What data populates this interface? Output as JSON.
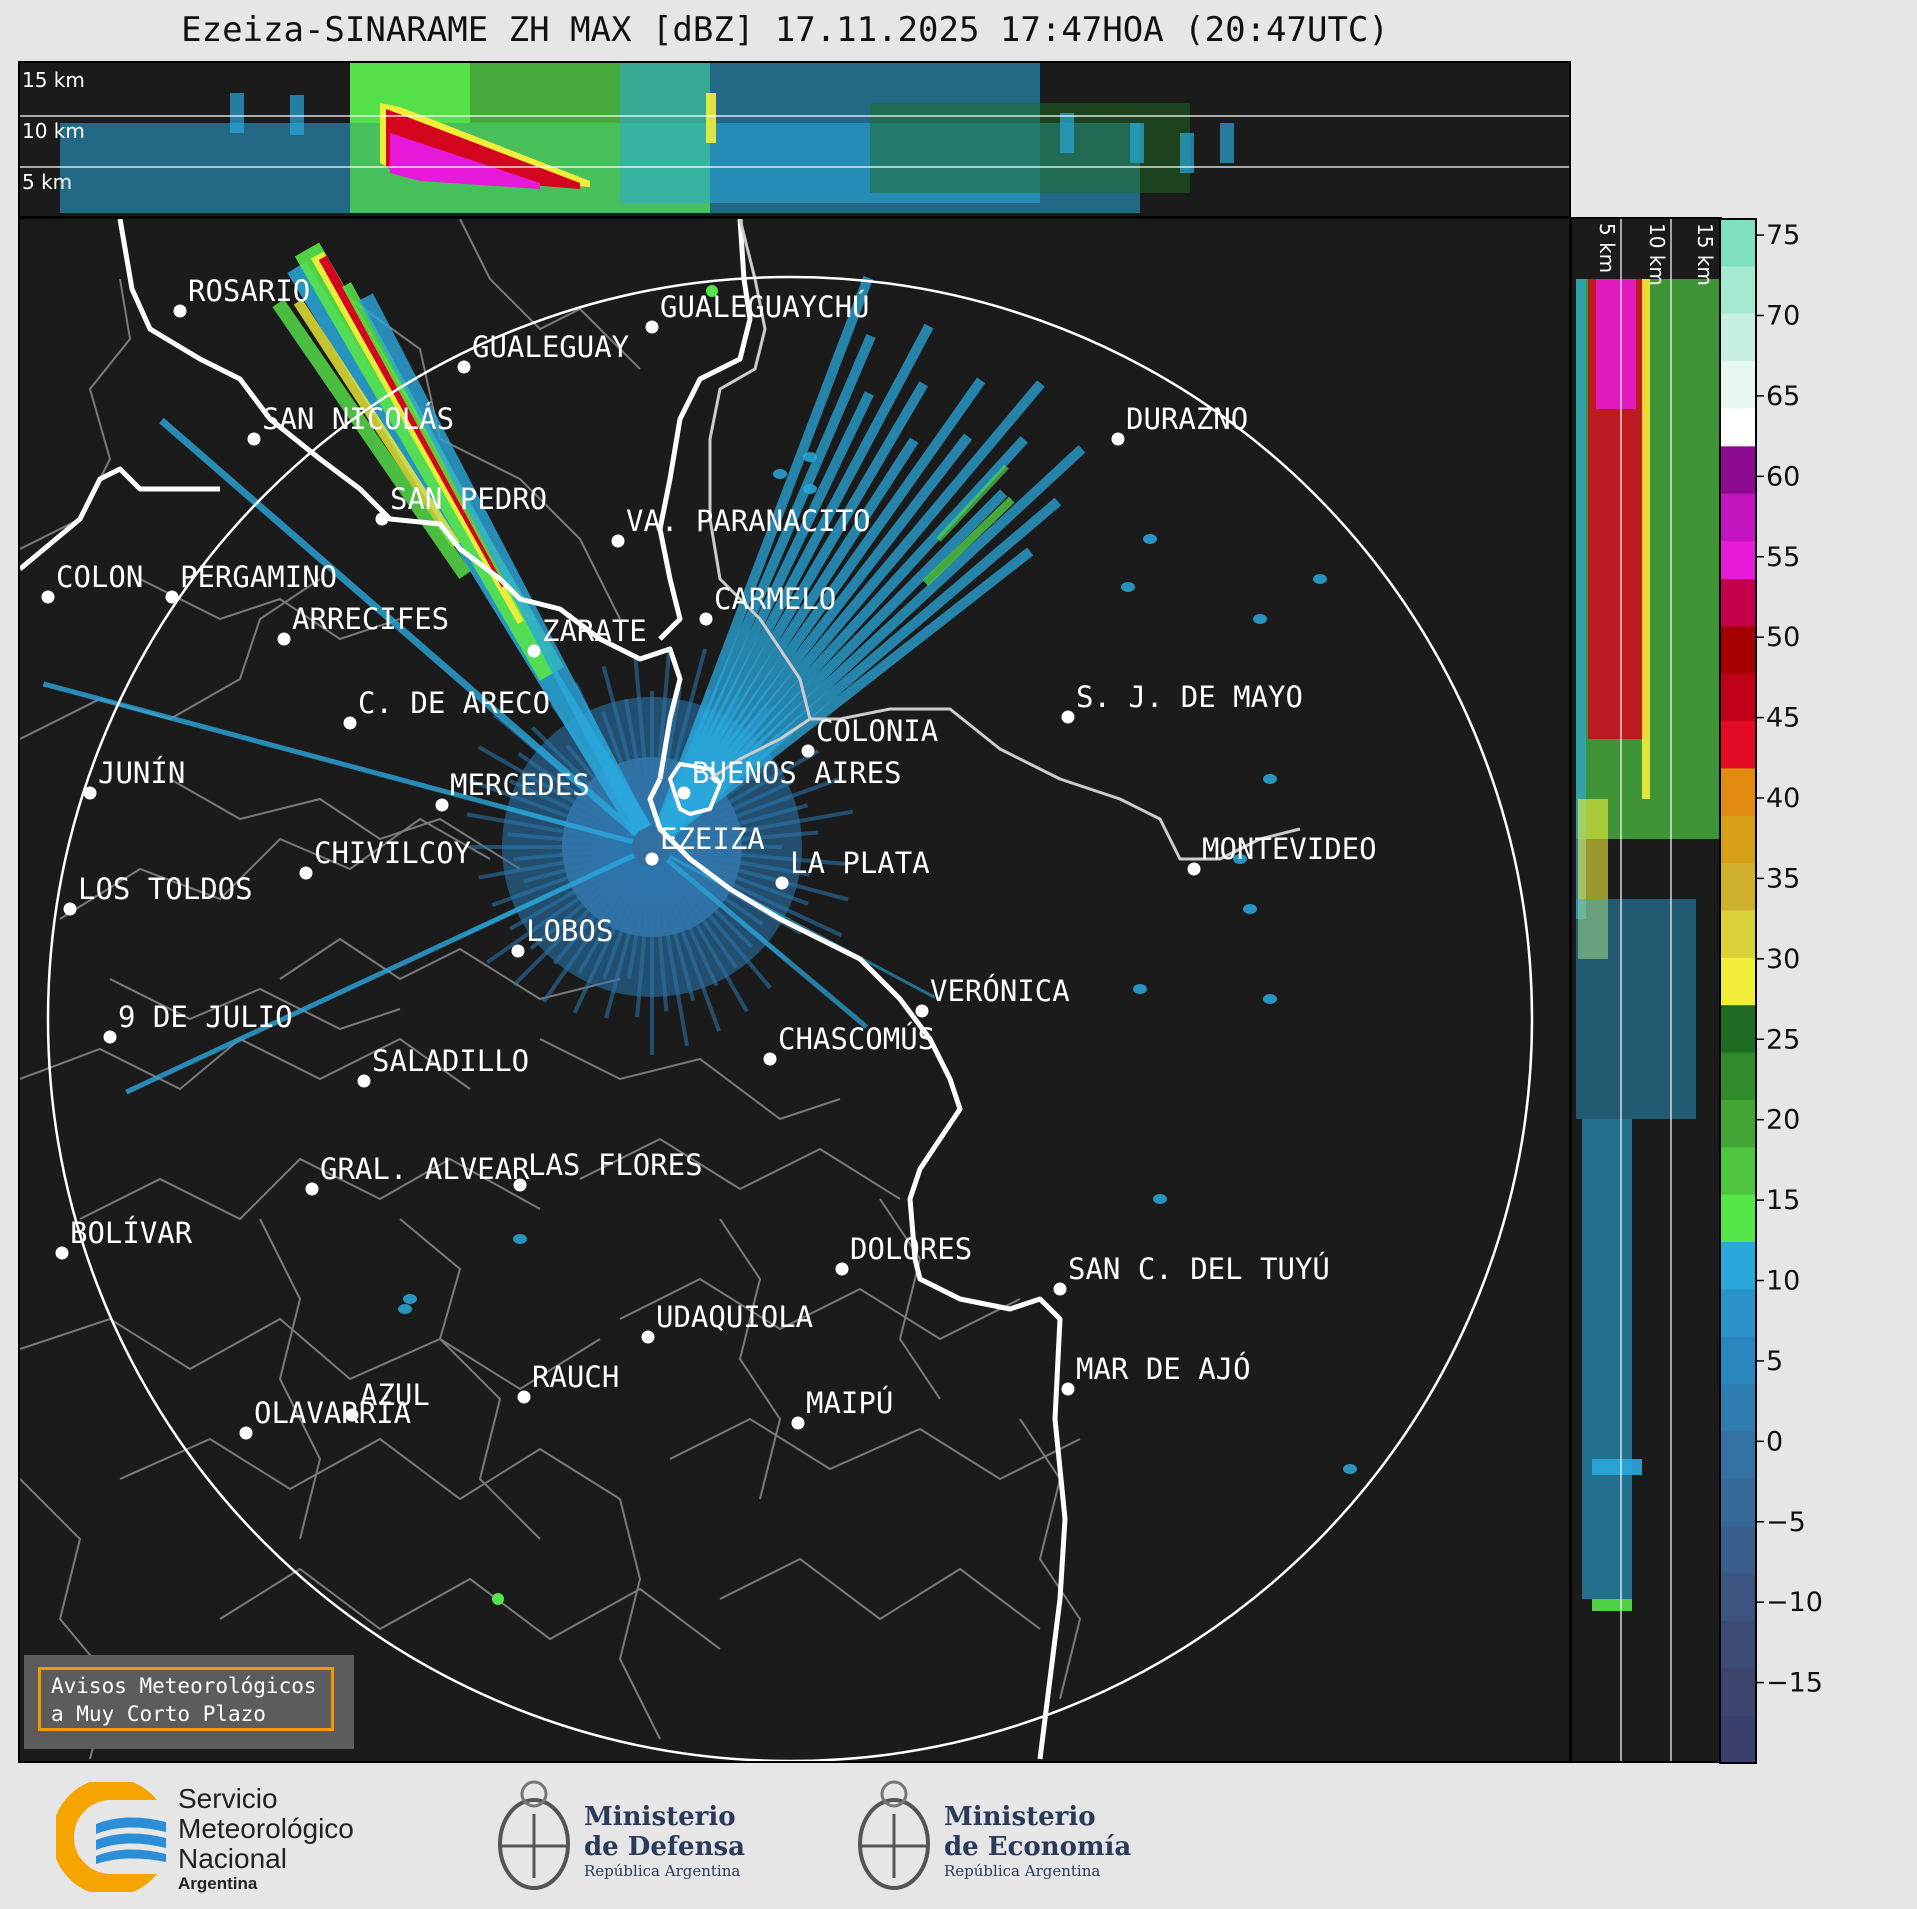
{
  "title": "Ezeiza-SINARAME ZH MAX [dBZ] 17.11.2025 17:47HOA (20:47UTC)",
  "top_panel": {
    "height_labels": [
      "15 km",
      "10 km",
      "5 km"
    ]
  },
  "side_panel": {
    "height_labels": [
      "5 km",
      "10 km",
      "15 km"
    ]
  },
  "cities": [
    {
      "name": "ROSARIO"
    },
    {
      "name": "GUALEGUAYCHÚ"
    },
    {
      "name": "GUALEGUAY"
    },
    {
      "name": "SAN NICOLÁS"
    },
    {
      "name": "DURAZNO"
    },
    {
      "name": "SAN PEDRO"
    },
    {
      "name": "VA. PARANACITO"
    },
    {
      "name": "COLON"
    },
    {
      "name": "PERGAMINO"
    },
    {
      "name": "CARMELO"
    },
    {
      "name": "ARRECIFES"
    },
    {
      "name": "ZÁRATE"
    },
    {
      "name": "C. DE ARECO"
    },
    {
      "name": "S. J. DE MAYO"
    },
    {
      "name": "COLONIA"
    },
    {
      "name": "JUNÍN"
    },
    {
      "name": "BUENOS AIRES"
    },
    {
      "name": "MERCEDES"
    },
    {
      "name": "EZEIZA"
    },
    {
      "name": "MONTEVIDEO"
    },
    {
      "name": "CHIVILCOY"
    },
    {
      "name": "LA PLATA"
    },
    {
      "name": "LOS TOLDOS"
    },
    {
      "name": "LOBOS"
    },
    {
      "name": "VERÓNICA"
    },
    {
      "name": "9 DE JULIO"
    },
    {
      "name": "CHASCOMÚS"
    },
    {
      "name": "SALADILLO"
    },
    {
      "name": "GRAL. ALVEAR"
    },
    {
      "name": "LAS FLORES"
    },
    {
      "name": "BOLÍVAR"
    },
    {
      "name": "DOLORES"
    },
    {
      "name": "SAN C. DEL TUYÚ"
    },
    {
      "name": "UDAQUIOLA"
    },
    {
      "name": "RAUCH"
    },
    {
      "name": "MAR DE AJÓ"
    },
    {
      "name": "AZUL"
    },
    {
      "name": "OLAVARRÍA"
    },
    {
      "name": "MAIPÚ"
    }
  ],
  "colorbar": {
    "unit": "dBZ",
    "range": [
      -20,
      76
    ],
    "ticks": [
      "75",
      "70",
      "65",
      "60",
      "55",
      "50",
      "45",
      "40",
      "35",
      "30",
      "25",
      "20",
      "15",
      "10",
      "5",
      "0",
      "−5",
      "−10",
      "−15"
    ],
    "colors": {
      "very_low": "#3b3f6e",
      "low": "#2a79b0",
      "mid_blue": "#2aa8dc",
      "green_low": "#1f6b22",
      "green_high": "#57e64a",
      "yellow": "#f1ee3a",
      "orange": "#e08a10",
      "red": "#d4061f",
      "dark_red": "#a40000",
      "magenta": "#e61ad8",
      "purple": "#8b0a8f",
      "white": "#ffffff",
      "teal_high": "#7fe0c0"
    }
  },
  "warning_box": {
    "line1": "Avisos Meteorológicos",
    "line2": "a Muy Corto Plazo"
  },
  "footer": {
    "smn": {
      "line1": "Servicio",
      "line2": "Meteorológico",
      "line3": "Nacional",
      "sub": "Argentina"
    },
    "defensa": {
      "line1": "Ministerio",
      "line2": "de Defensa",
      "sub": "República Argentina"
    },
    "economia": {
      "line1": "Ministerio",
      "line2": "de Economía",
      "sub": "República Argentina"
    }
  }
}
